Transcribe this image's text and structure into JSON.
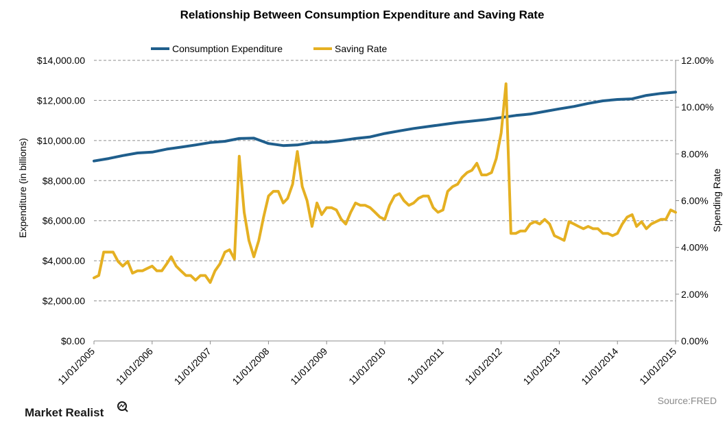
{
  "chart_data": {
    "type": "line",
    "title": "Relationship Between Consumption Expenditure and Saving Rate",
    "y_left_label": "Expenditure (in billions)",
    "y_right_label": "Spending Rate",
    "y_left_range": [
      0,
      14000
    ],
    "y_right_range": [
      0,
      12
    ],
    "y_left_ticks": [
      "$0.00",
      "$2,000.00",
      "$4,000.00",
      "$6,000.00",
      "$8,000.00",
      "$10,000.00",
      "$12,000.00",
      "$14,000.00"
    ],
    "y_right_ticks": [
      "0.00%",
      "2.00%",
      "4.00%",
      "6.00%",
      "8.00%",
      "10.00%",
      "12.00%"
    ],
    "x_range": [
      "2005-11-01",
      "2015-11-01"
    ],
    "x_ticks": [
      "11/01/2005",
      "11/01/2006",
      "11/01/2007",
      "11/01/2008",
      "11/01/2009",
      "11/01/2010",
      "11/01/2011",
      "11/01/2012",
      "11/01/2013",
      "11/01/2014",
      "11/01/2015"
    ],
    "grid": "horizontal dashed",
    "legend_position": "top",
    "series": [
      {
        "name": "Consumption Expenditure",
        "axis": "left",
        "color": "#1f5e8c",
        "points": [
          [
            "2005-11-01",
            8980
          ],
          [
            "2006-02-01",
            9100
          ],
          [
            "2006-05-01",
            9250
          ],
          [
            "2006-08-01",
            9380
          ],
          [
            "2006-11-01",
            9420
          ],
          [
            "2007-02-01",
            9570
          ],
          [
            "2007-05-01",
            9670
          ],
          [
            "2007-08-01",
            9780
          ],
          [
            "2007-11-01",
            9900
          ],
          [
            "2008-02-01",
            9960
          ],
          [
            "2008-05-01",
            10100
          ],
          [
            "2008-08-01",
            10120
          ],
          [
            "2008-11-01",
            9850
          ],
          [
            "2009-02-01",
            9750
          ],
          [
            "2009-05-01",
            9780
          ],
          [
            "2009-08-01",
            9900
          ],
          [
            "2009-11-01",
            9920
          ],
          [
            "2010-02-01",
            10000
          ],
          [
            "2010-05-01",
            10100
          ],
          [
            "2010-08-01",
            10180
          ],
          [
            "2010-11-01",
            10350
          ],
          [
            "2011-02-01",
            10480
          ],
          [
            "2011-05-01",
            10600
          ],
          [
            "2011-08-01",
            10700
          ],
          [
            "2011-11-01",
            10800
          ],
          [
            "2012-02-01",
            10900
          ],
          [
            "2012-05-01",
            10970
          ],
          [
            "2012-08-01",
            11050
          ],
          [
            "2012-11-01",
            11150
          ],
          [
            "2013-02-01",
            11250
          ],
          [
            "2013-05-01",
            11320
          ],
          [
            "2013-08-01",
            11450
          ],
          [
            "2013-11-01",
            11580
          ],
          [
            "2014-02-01",
            11700
          ],
          [
            "2014-05-01",
            11850
          ],
          [
            "2014-08-01",
            11980
          ],
          [
            "2014-11-01",
            12050
          ],
          [
            "2015-02-01",
            12080
          ],
          [
            "2015-05-01",
            12250
          ],
          [
            "2015-08-01",
            12350
          ],
          [
            "2015-11-01",
            12420
          ]
        ]
      },
      {
        "name": "Saving Rate",
        "axis": "right",
        "color": "#e5b022",
        "points": [
          [
            "2005-11-01",
            2.7
          ],
          [
            "2005-12-01",
            2.8
          ],
          [
            "2006-01-01",
            3.8
          ],
          [
            "2006-02-01",
            3.8
          ],
          [
            "2006-03-01",
            3.8
          ],
          [
            "2006-04-01",
            3.4
          ],
          [
            "2006-05-01",
            3.2
          ],
          [
            "2006-06-01",
            3.4
          ],
          [
            "2006-07-01",
            2.9
          ],
          [
            "2006-08-01",
            3.0
          ],
          [
            "2006-09-01",
            3.0
          ],
          [
            "2006-10-01",
            3.1
          ],
          [
            "2006-11-01",
            3.2
          ],
          [
            "2006-12-01",
            3.0
          ],
          [
            "2007-01-01",
            3.0
          ],
          [
            "2007-02-01",
            3.3
          ],
          [
            "2007-03-01",
            3.6
          ],
          [
            "2007-04-01",
            3.2
          ],
          [
            "2007-05-01",
            3.0
          ],
          [
            "2007-06-01",
            2.8
          ],
          [
            "2007-07-01",
            2.8
          ],
          [
            "2007-08-01",
            2.6
          ],
          [
            "2007-09-01",
            2.8
          ],
          [
            "2007-10-01",
            2.8
          ],
          [
            "2007-11-01",
            2.5
          ],
          [
            "2007-12-01",
            3.0
          ],
          [
            "2008-01-01",
            3.3
          ],
          [
            "2008-02-01",
            3.8
          ],
          [
            "2008-03-01",
            3.9
          ],
          [
            "2008-04-01",
            3.5
          ],
          [
            "2008-05-01",
            7.9
          ],
          [
            "2008-06-01",
            5.5
          ],
          [
            "2008-07-01",
            4.3
          ],
          [
            "2008-08-01",
            3.6
          ],
          [
            "2008-09-01",
            4.3
          ],
          [
            "2008-10-01",
            5.3
          ],
          [
            "2008-11-01",
            6.2
          ],
          [
            "2008-12-01",
            6.4
          ],
          [
            "2009-01-01",
            6.4
          ],
          [
            "2009-02-01",
            5.9
          ],
          [
            "2009-03-01",
            6.1
          ],
          [
            "2009-04-01",
            6.7
          ],
          [
            "2009-05-01",
            8.1
          ],
          [
            "2009-06-01",
            6.6
          ],
          [
            "2009-07-01",
            6.0
          ],
          [
            "2009-08-01",
            4.9
          ],
          [
            "2009-09-01",
            5.9
          ],
          [
            "2009-10-01",
            5.4
          ],
          [
            "2009-11-01",
            5.7
          ],
          [
            "2009-12-01",
            5.7
          ],
          [
            "2010-01-01",
            5.6
          ],
          [
            "2010-02-01",
            5.2
          ],
          [
            "2010-03-01",
            5.0
          ],
          [
            "2010-04-01",
            5.5
          ],
          [
            "2010-05-01",
            5.9
          ],
          [
            "2010-06-01",
            5.8
          ],
          [
            "2010-07-01",
            5.8
          ],
          [
            "2010-08-01",
            5.7
          ],
          [
            "2010-09-01",
            5.5
          ],
          [
            "2010-10-01",
            5.3
          ],
          [
            "2010-11-01",
            5.2
          ],
          [
            "2010-12-01",
            5.8
          ],
          [
            "2011-01-01",
            6.2
          ],
          [
            "2011-02-01",
            6.3
          ],
          [
            "2011-03-01",
            6.0
          ],
          [
            "2011-04-01",
            5.8
          ],
          [
            "2011-05-01",
            5.9
          ],
          [
            "2011-06-01",
            6.1
          ],
          [
            "2011-07-01",
            6.2
          ],
          [
            "2011-08-01",
            6.2
          ],
          [
            "2011-09-01",
            5.7
          ],
          [
            "2011-10-01",
            5.5
          ],
          [
            "2011-11-01",
            5.6
          ],
          [
            "2011-12-01",
            6.4
          ],
          [
            "2012-01-01",
            6.6
          ],
          [
            "2012-02-01",
            6.7
          ],
          [
            "2012-03-01",
            7.0
          ],
          [
            "2012-04-01",
            7.2
          ],
          [
            "2012-05-01",
            7.3
          ],
          [
            "2012-06-01",
            7.6
          ],
          [
            "2012-07-01",
            7.1
          ],
          [
            "2012-08-01",
            7.1
          ],
          [
            "2012-09-01",
            7.2
          ],
          [
            "2012-10-01",
            7.8
          ],
          [
            "2012-11-01",
            8.9
          ],
          [
            "2012-12-01",
            11.0
          ],
          [
            "2013-01-01",
            4.6
          ],
          [
            "2013-02-01",
            4.6
          ],
          [
            "2013-03-01",
            4.7
          ],
          [
            "2013-04-01",
            4.7
          ],
          [
            "2013-05-01",
            5.0
          ],
          [
            "2013-06-01",
            5.1
          ],
          [
            "2013-07-01",
            5.0
          ],
          [
            "2013-08-01",
            5.2
          ],
          [
            "2013-09-01",
            5.0
          ],
          [
            "2013-10-01",
            4.5
          ],
          [
            "2013-11-01",
            4.4
          ],
          [
            "2013-12-01",
            4.3
          ],
          [
            "2014-01-01",
            5.1
          ],
          [
            "2014-02-01",
            5.0
          ],
          [
            "2014-03-01",
            4.9
          ],
          [
            "2014-04-01",
            4.8
          ],
          [
            "2014-05-01",
            4.9
          ],
          [
            "2014-06-01",
            4.8
          ],
          [
            "2014-07-01",
            4.8
          ],
          [
            "2014-08-01",
            4.6
          ],
          [
            "2014-09-01",
            4.6
          ],
          [
            "2014-10-01",
            4.5
          ],
          [
            "2014-11-01",
            4.6
          ],
          [
            "2014-12-01",
            5.0
          ],
          [
            "2015-01-01",
            5.3
          ],
          [
            "2015-02-01",
            5.4
          ],
          [
            "2015-03-01",
            4.9
          ],
          [
            "2015-04-01",
            5.1
          ],
          [
            "2015-05-01",
            4.8
          ],
          [
            "2015-06-01",
            5.0
          ],
          [
            "2015-07-01",
            5.1
          ],
          [
            "2015-08-01",
            5.2
          ],
          [
            "2015-09-01",
            5.2
          ],
          [
            "2015-10-01",
            5.6
          ],
          [
            "2015-11-01",
            5.5
          ]
        ]
      }
    ]
  },
  "source": "Source:FRED",
  "brand": "Market Realist",
  "brand_icon": "magnifier-chart-icon"
}
